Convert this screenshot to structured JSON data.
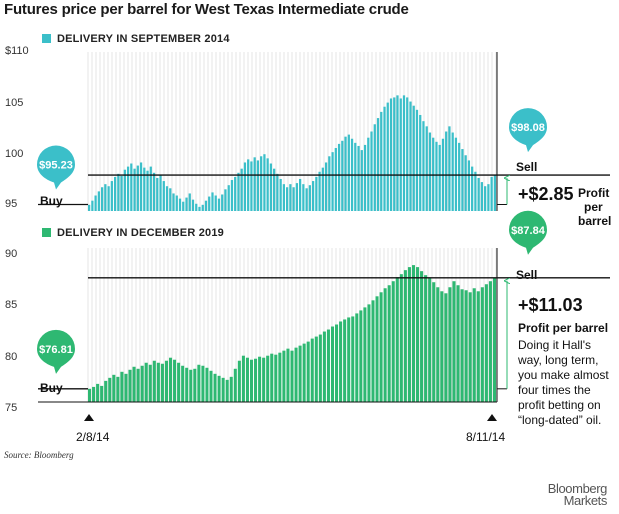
{
  "title": "Futures price per barrel for West Texas Intermediate crude",
  "colors": {
    "sep2014": "#3bbfc9",
    "dec2019": "#2eb872",
    "grid": "#dcdcdc",
    "arrow": "#2eb872"
  },
  "source": "Source: Bloomberg",
  "brand": {
    "line1": "Bloomberg",
    "line2": "Markets"
  },
  "dates": {
    "start": "2/8/14",
    "end": "8/11/14"
  },
  "note_lines": [
    "Doing it Hall's",
    "way, long term,",
    "you make almost",
    "four times the",
    "profit betting on",
    "“long-dated” oil."
  ],
  "chart_data": [
    {
      "type": "bar",
      "legend": "DELIVERY IN SEPTEMBER 2014",
      "y_ticks": [
        "$110",
        "105",
        "100",
        "95"
      ],
      "ylim": [
        94.6,
        110
      ],
      "x_range": [
        "2/8/14",
        "8/11/14"
      ],
      "buy": {
        "label": "Buy",
        "price": "$95.23",
        "value": 95.23
      },
      "sell": {
        "label": "Sell",
        "price": "$98.08",
        "value": 98.08
      },
      "gain": "+$2.85",
      "gain_label": [
        "Profit",
        "per",
        "barrel"
      ],
      "values": [
        95.2,
        95.6,
        96.1,
        96.5,
        96.9,
        97.2,
        97.0,
        97.5,
        97.9,
        98.2,
        98.0,
        98.6,
        98.9,
        99.2,
        98.7,
        99.0,
        99.3,
        98.8,
        98.5,
        98.9,
        98.3,
        97.8,
        98.1,
        97.5,
        97.0,
        96.8,
        96.3,
        96.1,
        95.8,
        95.5,
        95.9,
        96.3,
        95.7,
        95.3,
        95.0,
        95.2,
        95.6,
        96.0,
        96.4,
        96.1,
        95.8,
        96.2,
        96.7,
        97.1,
        97.6,
        97.9,
        98.3,
        98.7,
        99.3,
        99.6,
        99.4,
        99.8,
        99.5,
        99.9,
        100.1,
        99.7,
        99.2,
        98.7,
        98.2,
        97.7,
        97.2,
        96.9,
        97.2,
        96.9,
        97.3,
        97.7,
        97.2,
        96.8,
        97.1,
        97.5,
        97.9,
        98.4,
        98.8,
        99.3,
        99.9,
        100.3,
        100.7,
        101.1,
        101.4,
        101.8,
        102.0,
        101.6,
        101.2,
        100.9,
        100.5,
        101.0,
        101.7,
        102.3,
        103.0,
        103.6,
        104.2,
        104.7,
        105.1,
        105.5,
        105.6,
        105.8,
        105.5,
        105.8,
        105.6,
        105.2,
        104.8,
        104.4,
        103.9,
        103.3,
        102.8,
        102.2,
        101.7,
        101.3,
        101.0,
        101.6,
        102.3,
        102.8,
        102.2,
        101.7,
        101.2,
        100.6,
        100.0,
        99.5,
        98.9,
        98.4,
        97.8,
        97.4,
        97.0,
        97.2,
        97.9,
        98.08
      ]
    },
    {
      "type": "bar",
      "legend": "DELIVERY IN DECEMBER 2019",
      "y_ticks": [
        "90",
        "85",
        "80",
        "75"
      ],
      "ylim": [
        75.5,
        90.8
      ],
      "x_range": [
        "2/8/14",
        "8/11/14"
      ],
      "buy": {
        "label": "Buy",
        "price": "$76.81",
        "value": 76.81
      },
      "sell": {
        "label": "Sell",
        "price": "$87.84",
        "value": 87.84
      },
      "gain": "+$11.03",
      "gain_label": [
        "Profit per barrel"
      ],
      "values": [
        76.81,
        77.0,
        77.3,
        77.1,
        77.6,
        77.9,
        78.2,
        78.0,
        78.5,
        78.3,
        78.7,
        79.0,
        78.8,
        79.1,
        79.4,
        79.2,
        79.6,
        79.4,
        79.3,
        79.6,
        79.9,
        79.7,
        79.4,
        79.1,
        78.9,
        78.7,
        78.8,
        79.2,
        79.1,
        78.9,
        78.6,
        78.3,
        78.1,
        77.9,
        77.7,
        78.0,
        78.8,
        79.6,
        80.1,
        79.9,
        79.7,
        79.8,
        80.0,
        79.9,
        80.1,
        80.3,
        80.2,
        80.4,
        80.6,
        80.8,
        80.6,
        80.9,
        81.1,
        81.3,
        81.5,
        81.8,
        82.0,
        82.2,
        82.5,
        82.7,
        83.0,
        83.2,
        83.5,
        83.7,
        83.9,
        84.0,
        84.3,
        84.6,
        84.9,
        85.2,
        85.6,
        86.0,
        86.4,
        86.8,
        87.1,
        87.5,
        87.9,
        88.2,
        88.6,
        88.9,
        89.1,
        88.9,
        88.5,
        88.1,
        87.8,
        87.4,
        86.9,
        86.5,
        86.3,
        86.9,
        87.5,
        87.1,
        86.7,
        86.6,
        86.4,
        86.8,
        86.5,
        86.9,
        87.2,
        87.5,
        87.84
      ]
    }
  ]
}
